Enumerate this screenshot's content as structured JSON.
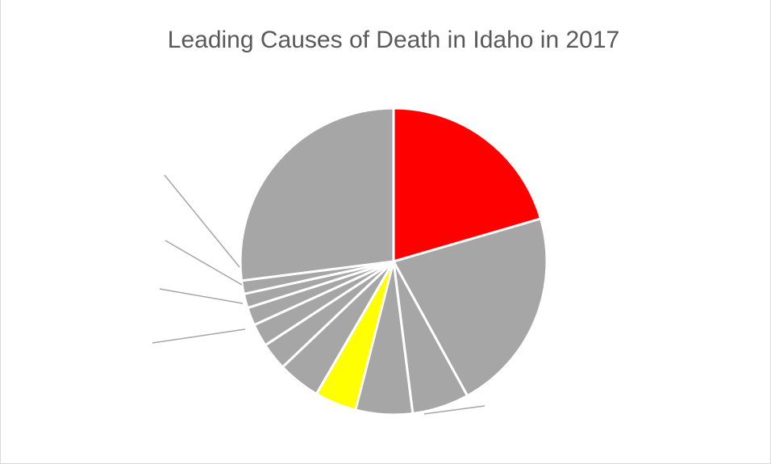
{
  "chart_data": {
    "type": "pie",
    "title": "Leading Causes of Death in Idaho in 2017",
    "slices": [
      {
        "value": 20.5,
        "color": "#ff0000"
      },
      {
        "value": 21.5,
        "color": "#a6a6a6"
      },
      {
        "value": 6.0,
        "color": "#a6a6a6"
      },
      {
        "value": 6.0,
        "color": "#a6a6a6"
      },
      {
        "value": 4.4,
        "color": "#ffff00"
      },
      {
        "value": 4.5,
        "color": "#a6a6a6"
      },
      {
        "value": 2.9,
        "color": "#a6a6a6"
      },
      {
        "value": 2.4,
        "color": "#a6a6a6"
      },
      {
        "value": 1.9,
        "color": "#a6a6a6"
      },
      {
        "value": 1.5,
        "color": "#a6a6a6"
      },
      {
        "value": 1.4,
        "color": "#a6a6a6"
      },
      {
        "value": 27.0,
        "color": "#a6a6a6"
      }
    ],
    "start_angle_deg": 0,
    "direction": "clockwise",
    "slice_border_color": "#ffffff",
    "leader_line_color": "#a6a6a6",
    "data_labels_visible": false
  }
}
